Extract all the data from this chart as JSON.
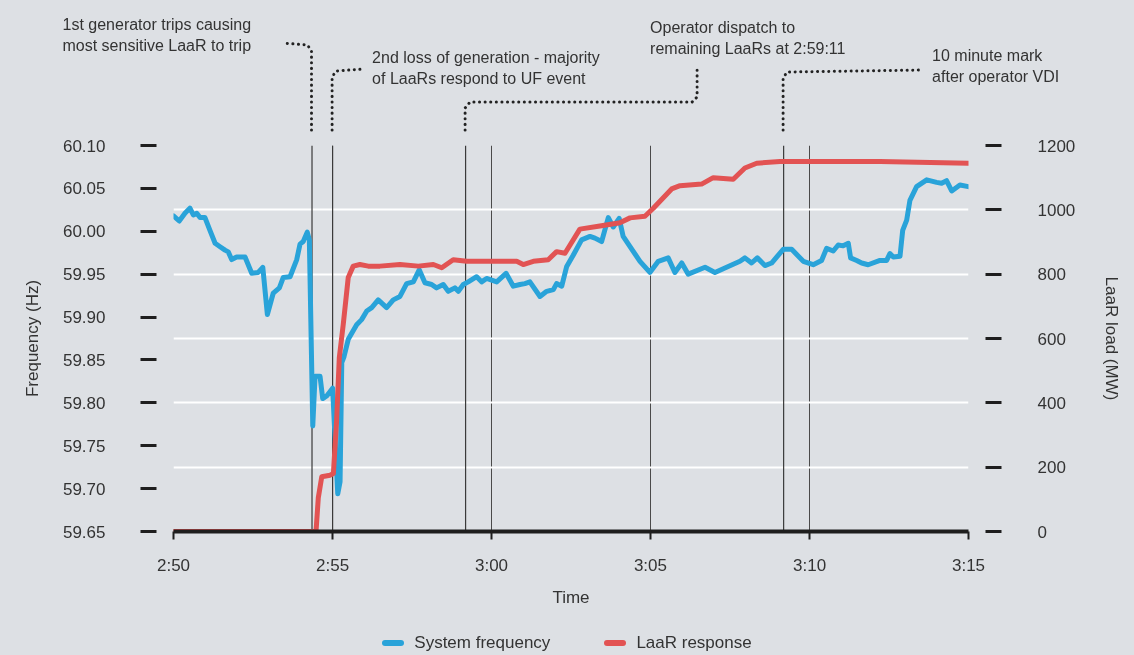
{
  "chart_data": {
    "type": "line",
    "xlabel": "Time",
    "ylabel": "Frequency (Hz)",
    "y2label": "LaaR load (MW)",
    "xlim": [
      2.8333,
      3.25
    ],
    "xticks": [
      {
        "value": 2.8333,
        "label": "2:50"
      },
      {
        "value": 2.9167,
        "label": "2:55"
      },
      {
        "value": 3.0,
        "label": "3:00"
      },
      {
        "value": 3.0833,
        "label": "3:05"
      },
      {
        "value": 3.1667,
        "label": "3:10"
      },
      {
        "value": 3.25,
        "label": "3:15"
      }
    ],
    "ylim": [
      59.65,
      60.1
    ],
    "yticks": [
      59.65,
      {
        "value": 59.7,
        "label": "59.70"
      },
      59.75,
      {
        "value": 59.8,
        "label": "59.80"
      },
      59.85,
      {
        "value": 59.9,
        "label": "59.90"
      },
      59.95,
      {
        "value": 60.0,
        "label": "60.00"
      },
      60.05,
      {
        "value": 60.1,
        "label": "60.10"
      }
    ],
    "y2lim": [
      0,
      1200
    ],
    "y2ticks": [
      0,
      200,
      400,
      600,
      800,
      1000,
      1200
    ],
    "grid": true,
    "legend": "bottom",
    "series": [
      {
        "name": "System frequency",
        "color": "#29a3d9",
        "x": [
          2.8333,
          2.8363,
          2.8393,
          2.8419,
          2.8437,
          2.8455,
          2.8472,
          2.8498,
          2.8524,
          2.8551,
          2.8577,
          2.8603,
          2.862,
          2.8638,
          2.8664,
          2.8708,
          2.8743,
          2.8777,
          2.8801,
          2.8825,
          2.8856,
          2.8888,
          2.8908,
          2.8944,
          2.8979,
          2.8996,
          2.9013,
          2.9034,
          2.9045,
          2.9063,
          2.9075,
          2.9101,
          2.9115,
          2.9136,
          2.9167,
          2.9194,
          2.9206,
          2.9215,
          2.9227,
          2.9249,
          2.9293,
          2.9319,
          2.9346,
          2.9372,
          2.9406,
          2.945,
          2.9485,
          2.952,
          2.9555,
          2.959,
          2.9621,
          2.9651,
          2.9686,
          2.9712,
          2.9747,
          2.9773,
          2.9808,
          2.9826,
          2.9852,
          2.9878,
          2.9922,
          2.9948,
          2.9974,
          3.0027,
          3.0076,
          3.0114,
          3.0149,
          3.0175,
          3.0201,
          3.0254,
          3.0289,
          3.0324,
          3.0341,
          3.0368,
          3.0394,
          3.0428,
          3.0472,
          3.0516,
          3.0542,
          3.0577,
          3.0612,
          3.0638,
          3.0669,
          3.069,
          3.0726,
          3.0778,
          3.083,
          3.0874,
          3.0926,
          3.0961,
          3.0997,
          3.1031,
          3.1119,
          3.1171,
          3.1232,
          3.1302,
          3.1328,
          3.1363,
          3.1393,
          3.1433,
          3.1468,
          3.1529,
          3.1573,
          3.1634,
          3.1686,
          3.173,
          3.1756,
          3.1791,
          3.1817,
          3.1843,
          3.187,
          3.1882,
          3.1914,
          3.194,
          3.1974,
          3.2036,
          3.2071,
          3.2088,
          3.2106,
          3.2141,
          3.2155,
          3.2176,
          3.2193,
          3.2228,
          3.2281,
          3.2333,
          3.2359,
          3.2385,
          3.2412,
          3.2455,
          3.2499
        ],
        "values": [
          60.018,
          60.012,
          60.021,
          60.027,
          60.019,
          60.021,
          60.016,
          60.016,
          60.001,
          59.986,
          59.982,
          59.978,
          59.976,
          59.967,
          59.97,
          59.97,
          59.951,
          59.952,
          59.958,
          59.903,
          59.928,
          59.934,
          59.946,
          59.947,
          59.967,
          59.985,
          59.988,
          59.999,
          59.99,
          59.773,
          59.831,
          59.831,
          59.805,
          59.808,
          59.817,
          59.694,
          59.708,
          59.847,
          59.854,
          59.874,
          59.891,
          59.897,
          59.907,
          59.911,
          59.92,
          59.911,
          59.92,
          59.924,
          59.939,
          59.941,
          59.955,
          59.94,
          59.938,
          59.934,
          59.938,
          59.93,
          59.934,
          59.93,
          59.938,
          59.941,
          59.947,
          59.941,
          59.945,
          59.941,
          59.951,
          59.936,
          59.938,
          59.939,
          59.941,
          59.924,
          59.93,
          59.932,
          59.939,
          59.936,
          59.959,
          59.972,
          59.99,
          59.994,
          59.992,
          59.988,
          60.016,
          60.005,
          60.015,
          59.994,
          59.982,
          59.965,
          59.952,
          59.965,
          59.969,
          59.952,
          59.963,
          59.95,
          59.958,
          59.952,
          59.958,
          59.965,
          59.969,
          59.963,
          59.969,
          59.96,
          59.963,
          59.979,
          59.979,
          59.965,
          59.961,
          59.966,
          59.98,
          59.977,
          59.984,
          59.983,
          59.986,
          59.969,
          59.966,
          59.963,
          59.961,
          59.966,
          59.966,
          59.974,
          59.97,
          59.971,
          60.001,
          60.013,
          60.036,
          60.052,
          60.06,
          60.057,
          60.056,
          60.059,
          60.047,
          60.054,
          60.052
        ]
      },
      {
        "name": "LaaR response",
        "color": "#e25353",
        "axis": "y2",
        "x": [
          2.8333,
          2.908,
          2.9092,
          2.911,
          2.9153,
          2.9171,
          2.9188,
          2.9202,
          2.9223,
          2.9249,
          2.9275,
          2.931,
          2.9354,
          2.9415,
          2.952,
          2.9616,
          2.9695,
          2.9739,
          2.9799,
          2.987,
          3.0044,
          3.0132,
          3.0166,
          3.0219,
          3.0297,
          3.0341,
          3.0385,
          3.0463,
          3.0568,
          3.0673,
          3.0726,
          3.0804,
          3.0848,
          3.0944,
          3.0988,
          3.1101,
          3.1162,
          3.1267,
          3.1328,
          3.139,
          3.1512,
          3.2036,
          3.2499
        ],
        "values": [
          0,
          0,
          105,
          170,
          175,
          180,
          345,
          540,
          645,
          790,
          825,
          830,
          825,
          825,
          830,
          825,
          830,
          820,
          845,
          840,
          840,
          840,
          830,
          840,
          845,
          870,
          865,
          940,
          950,
          960,
          975,
          980,
          1005,
          1065,
          1075,
          1080,
          1100,
          1095,
          1130,
          1145,
          1150,
          1150,
          1145
        ]
      }
    ],
    "ref_lines": [
      {
        "axis": "x",
        "value": 2.9059,
        "color": "#3a3a3a"
      },
      {
        "axis": "x",
        "value": 2.9167,
        "color": "#3a3a3a"
      },
      {
        "axis": "x",
        "value": 2.9864,
        "color": "#3a3a3a"
      },
      {
        "axis": "x",
        "value": 3.1531,
        "color": "#3a3a3a"
      }
    ],
    "annotations": [
      "1st generator trips causing\nmost sensitive LaaR to trip",
      "2nd loss of generation - majority\nof LaaRs respond to UF event",
      "Operator dispatch to\nremaining LaaRs at 2:59:11",
      "10 minute mark\nafter operator VDI"
    ]
  }
}
